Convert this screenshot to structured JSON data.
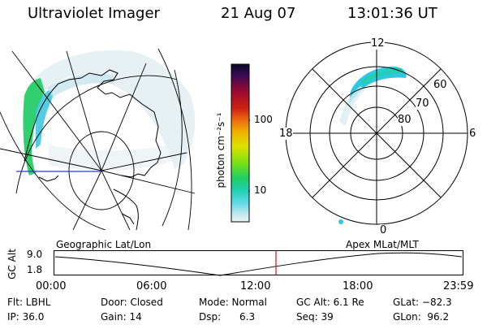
{
  "header": {
    "title": "Ultraviolet Imager",
    "date": "21 Aug 07",
    "time": "13:01:36 UT"
  },
  "colorbar": {
    "unit_label": "photon cm⁻²s⁻¹",
    "ticks": [
      "100",
      "10"
    ],
    "colors": [
      "#0a0a2a",
      "#3a0a55",
      "#7a0a3a",
      "#c01010",
      "#e05010",
      "#f0a000",
      "#e8e000",
      "#a0e000",
      "#30d040",
      "#10d0a0",
      "#30c8e0",
      "#a0e8f0",
      "#e8f0f4"
    ]
  },
  "polar": {
    "mlt_labels": {
      "top": "12",
      "left": "18",
      "right": "6",
      "bottom": "0"
    },
    "lat_labels": [
      "60",
      "70",
      "80"
    ]
  },
  "timeline": {
    "left_label": "Geographic Lat/Lon",
    "right_label": "Apex MLat/MLT",
    "axis_title": "GC Alt",
    "y_ticks": [
      "9.0",
      "1.8"
    ],
    "x_ticks": [
      "00:00",
      "06:00",
      "12:00",
      "18:00",
      "23:59"
    ],
    "current_time_fraction": 0.5427,
    "marker_color": "#ff0000"
  },
  "footer": {
    "row1": {
      "filter": "Flt: LBHL",
      "door": "Door: Closed",
      "mode": "Mode: Normal",
      "gc_alt": "GC Alt: 6.1 Re",
      "glat": "GLat: −82.3"
    },
    "row2": {
      "ip": "IP: 36.0",
      "gain": "Gain: 14",
      "dsp": "Dsp:      6.3",
      "seq": "Seq: 39",
      "glon": "GLon:  96.2"
    }
  }
}
